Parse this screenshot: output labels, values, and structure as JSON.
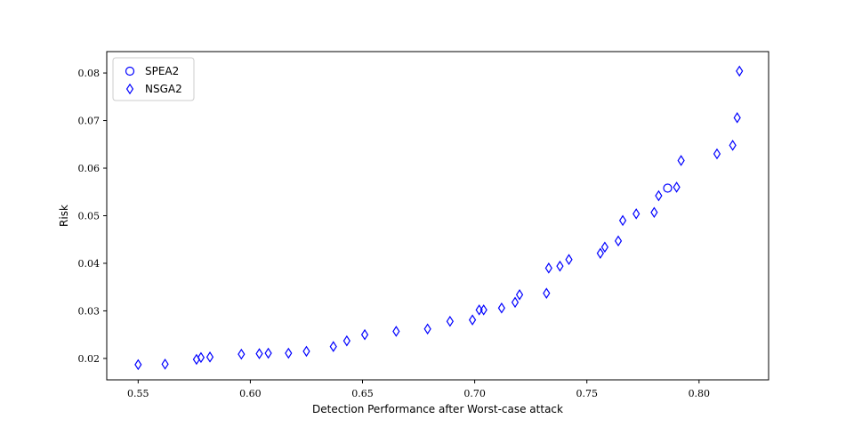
{
  "chart_data": {
    "type": "scatter",
    "title": "",
    "xlabel": "Detection Performance after Worst-case attack",
    "ylabel": "Risk",
    "xlim": [
      0.536,
      0.831
    ],
    "ylim": [
      0.0155,
      0.0845
    ],
    "xticks": [
      0.55,
      0.6,
      0.65,
      0.7,
      0.75,
      0.8
    ],
    "xtick_labels": [
      "0.55",
      "0.60",
      "0.65",
      "0.70",
      "0.75",
      "0.80"
    ],
    "yticks": [
      0.02,
      0.03,
      0.04,
      0.05,
      0.06,
      0.07,
      0.08
    ],
    "ytick_labels": [
      "0.02",
      "0.03",
      "0.04",
      "0.05",
      "0.06",
      "0.07",
      "0.08"
    ],
    "grid": false,
    "legend_position": "upper-left",
    "series": [
      {
        "name": "SPEA2",
        "marker": "circle",
        "color": "#0000ff",
        "points": [
          [
            0.786,
            0.0558
          ]
        ]
      },
      {
        "name": "NSGA2",
        "marker": "diamond",
        "color": "#0000ff",
        "points": [
          [
            0.55,
            0.0187
          ],
          [
            0.562,
            0.0188
          ],
          [
            0.576,
            0.0198
          ],
          [
            0.578,
            0.0202
          ],
          [
            0.582,
            0.0203
          ],
          [
            0.596,
            0.0209
          ],
          [
            0.604,
            0.021
          ],
          [
            0.608,
            0.0211
          ],
          [
            0.617,
            0.0211
          ],
          [
            0.625,
            0.0215
          ],
          [
            0.637,
            0.0225
          ],
          [
            0.643,
            0.0237
          ],
          [
            0.651,
            0.025
          ],
          [
            0.665,
            0.0257
          ],
          [
            0.679,
            0.0262
          ],
          [
            0.689,
            0.0278
          ],
          [
            0.699,
            0.0281
          ],
          [
            0.702,
            0.0302
          ],
          [
            0.704,
            0.0302
          ],
          [
            0.712,
            0.0306
          ],
          [
            0.718,
            0.0318
          ],
          [
            0.72,
            0.0334
          ],
          [
            0.732,
            0.0337
          ],
          [
            0.733,
            0.039
          ],
          [
            0.738,
            0.0394
          ],
          [
            0.742,
            0.0408
          ],
          [
            0.756,
            0.0421
          ],
          [
            0.758,
            0.0434
          ],
          [
            0.764,
            0.0447
          ],
          [
            0.766,
            0.049
          ],
          [
            0.772,
            0.0504
          ],
          [
            0.78,
            0.0507
          ],
          [
            0.782,
            0.0542
          ],
          [
            0.79,
            0.056
          ],
          [
            0.792,
            0.0616
          ],
          [
            0.808,
            0.063
          ],
          [
            0.815,
            0.0648
          ],
          [
            0.817,
            0.0706
          ],
          [
            0.818,
            0.0804
          ]
        ]
      }
    ]
  }
}
